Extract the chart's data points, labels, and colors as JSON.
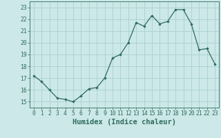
{
  "x": [
    0,
    1,
    2,
    3,
    4,
    5,
    6,
    7,
    8,
    9,
    10,
    11,
    12,
    13,
    14,
    15,
    16,
    17,
    18,
    19,
    20,
    21,
    22,
    23
  ],
  "y": [
    17.2,
    16.7,
    16.0,
    15.3,
    15.2,
    15.0,
    15.5,
    16.1,
    16.2,
    17.0,
    18.7,
    19.0,
    20.0,
    21.7,
    21.4,
    22.3,
    21.6,
    21.8,
    22.8,
    22.8,
    21.6,
    19.4,
    19.5,
    18.2
  ],
  "line_color": "#2e6b5e",
  "marker": "D",
  "marker_size": 1.8,
  "bg_color": "#cce8e8",
  "grid_color": "#aad0d0",
  "xlabel": "Humidex (Indice chaleur)",
  "xlim": [
    -0.5,
    23.5
  ],
  "ylim": [
    14.5,
    23.5
  ],
  "yticks": [
    15,
    16,
    17,
    18,
    19,
    20,
    21,
    22,
    23
  ],
  "xticks": [
    0,
    1,
    2,
    3,
    4,
    5,
    6,
    7,
    8,
    9,
    10,
    11,
    12,
    13,
    14,
    15,
    16,
    17,
    18,
    19,
    20,
    21,
    22,
    23
  ],
  "tick_color": "#2e6b5e",
  "label_color": "#2e6b5e",
  "xlabel_fontsize": 7.5,
  "tick_fontsize": 5.8,
  "linewidth": 0.9
}
